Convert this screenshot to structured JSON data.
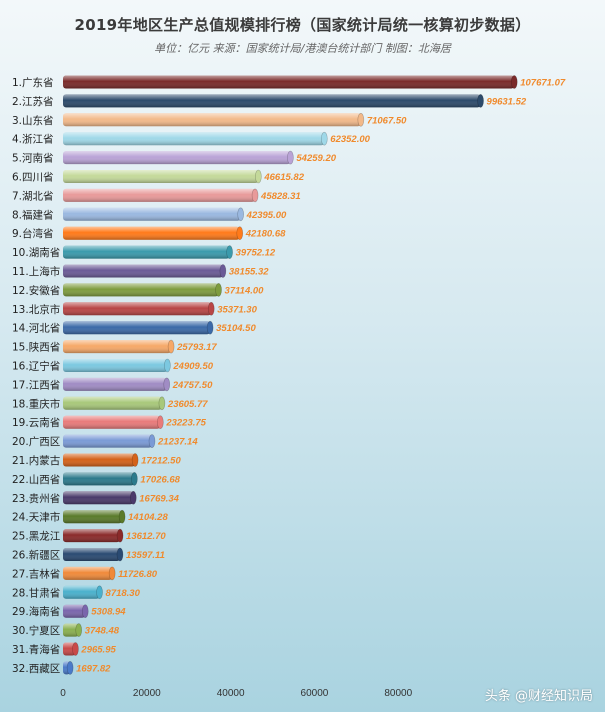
{
  "chart_data": {
    "type": "bar",
    "orientation": "horizontal",
    "title": "2019年地区生产总值规模排行榜（国家统计局统一核算初步数据）",
    "subtitle": "单位：亿元 来源：国家统计局/港澳台统计部门 制图：北海居",
    "categories": [
      "1.广东省",
      "2.江苏省",
      "3.山东省",
      "4.浙江省",
      "5.河南省",
      "6.四川省",
      "7.湖北省",
      "8.福建省",
      "9.台湾省",
      "10.湖南省",
      "11.上海市",
      "12.安徽省",
      "13.北京市",
      "14.河北省",
      "15.陕西省",
      "16.辽宁省",
      "17.江西省",
      "18.重庆市",
      "19.云南省",
      "20.广西区",
      "21.内蒙古",
      "22.山西省",
      "23.贵州省",
      "24.天津市",
      "25.黑龙江",
      "26.新疆区",
      "27.吉林省",
      "28.甘肃省",
      "29.海南省",
      "30.宁夏区",
      "31.青海省",
      "32.西藏区"
    ],
    "values": [
      107671.07,
      99631.52,
      71067.5,
      62352.0,
      54259.2,
      46615.82,
      45828.31,
      42395.0,
      42180.68,
      39752.12,
      38155.32,
      37114.0,
      35371.3,
      35104.5,
      25793.17,
      24909.5,
      24757.5,
      23605.77,
      23223.75,
      21237.14,
      17212.5,
      17026.68,
      16769.34,
      14104.28,
      13612.7,
      13597.11,
      11726.8,
      8718.3,
      5308.94,
      3748.48,
      2965.95,
      1697.82
    ],
    "value_labels": [
      "107671.07",
      "99631.52",
      "71067.50",
      "62352.00",
      "54259.20",
      "46615.82",
      "45828.31",
      "42395.00",
      "42180.68",
      "39752.12",
      "38155.32",
      "37114.00",
      "35371.30",
      "35104.50",
      "25793.17",
      "24909.50",
      "24757.50",
      "23605.77",
      "23223.75",
      "21237.14",
      "17212.50",
      "17026.68",
      "16769.34",
      "14104.28",
      "13612.70",
      "13597.11",
      "11726.80",
      "8718.30",
      "5308.94",
      "3748.48",
      "2965.95",
      "1697.82"
    ],
    "colors": [
      "#7a2a2a",
      "#2c4a6b",
      "#f2b98a",
      "#9fd8e8",
      "#b9a3d6",
      "#c4d99a",
      "#e89a9a",
      "#9ab8e0",
      "#ff7a1a",
      "#3a9aac",
      "#6a5a96",
      "#7e9c3e",
      "#b84646",
      "#3c6aa8",
      "#f6a868",
      "#7cc8e0",
      "#a08cc4",
      "#a8c87a",
      "#e87a7a",
      "#7a9ad6",
      "#d4621a",
      "#2c7a8c",
      "#4a3a6a",
      "#5a7a2a",
      "#8a2a2a",
      "#2a4a72",
      "#f08a3a",
      "#4ab0cc",
      "#7a66ac",
      "#8ab050",
      "#c84a4a",
      "#4a7ac8"
    ],
    "xticks": [
      0,
      20000,
      40000,
      60000,
      80000
    ],
    "xtick_labels": [
      "0",
      "20000",
      "40000",
      "60000",
      "80000"
    ],
    "xlim": [
      0,
      110000
    ],
    "xlabel": "",
    "ylabel": "",
    "grid": false,
    "legend": "none"
  },
  "watermark": "头条 @财经知识局"
}
